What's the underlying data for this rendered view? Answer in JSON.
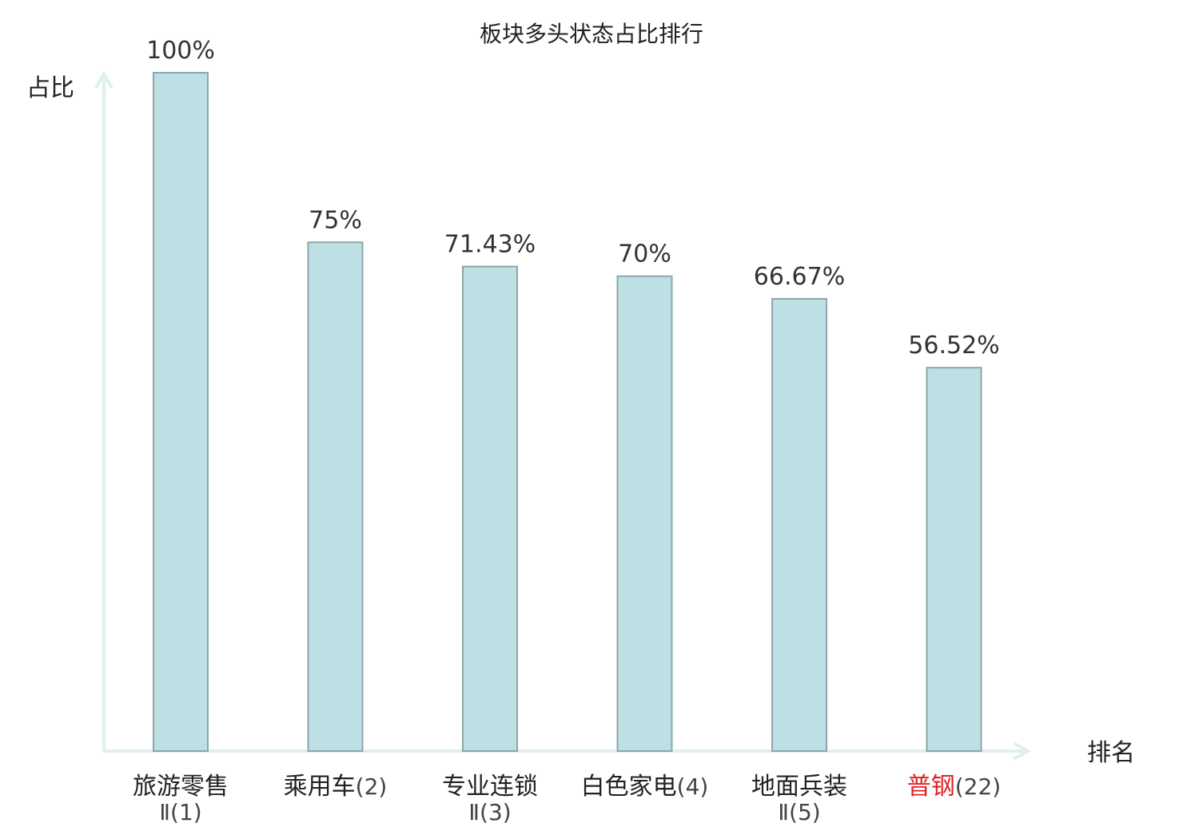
{
  "chart_data": {
    "type": "bar",
    "title": "板块多头状态占比排行",
    "ylabel": "占比",
    "xlabel": "排名",
    "ylim": [
      0,
      100
    ],
    "grid": false,
    "categories": [
      {
        "name": "旅游零售",
        "rank": "Ⅱ(1)",
        "highlight": false
      },
      {
        "name": "乘用车",
        "rank": "(2)",
        "highlight": false
      },
      {
        "name": "专业连锁",
        "rank": "Ⅱ(3)",
        "highlight": false
      },
      {
        "name": "白色家电",
        "rank": "(4)",
        "highlight": false
      },
      {
        "name": "地面兵装",
        "rank": "Ⅱ(5)",
        "highlight": false
      },
      {
        "name": "普钢",
        "rank": "(22)",
        "highlight": true
      }
    ],
    "values": [
      100,
      75,
      71.43,
      70,
      66.67,
      56.52
    ],
    "value_labels": [
      "100%",
      "75%",
      "71.43%",
      "70%",
      "66.67%",
      "56.52%"
    ]
  },
  "colors": {
    "bar_fill": "#bce0e3",
    "bar_stroke": "#8aa8ab",
    "axis": "#dff0ee",
    "text": "#222222",
    "highlight": "#e02020"
  }
}
